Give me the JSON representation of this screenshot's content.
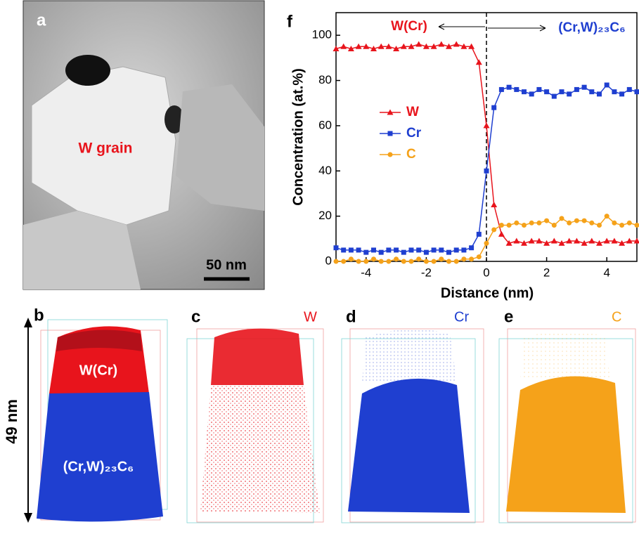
{
  "panels": {
    "a": {
      "label": "a",
      "annotation": "W grain",
      "scale_bar": "50 nm"
    },
    "b": {
      "label": "b",
      "upper_phase": "W(Cr)",
      "lower_phase": "(Cr,W)₂₃C₆",
      "height": "49 nm"
    },
    "c": {
      "label": "c",
      "element": "W"
    },
    "d": {
      "label": "d",
      "element": "Cr"
    },
    "e": {
      "label": "e",
      "element": "C"
    }
  },
  "chart_data": {
    "type": "line",
    "panel_label": "f",
    "x_label": "Distance (nm)",
    "y_label": "Concentration (at.%)",
    "annotations": [
      "W(Cr)",
      "(Cr,W)₂₃C₆"
    ],
    "x": [
      -5,
      -4.75,
      -4.5,
      -4.25,
      -4,
      -3.75,
      -3.5,
      -3.25,
      -3,
      -2.75,
      -2.5,
      -2.25,
      -2,
      -1.75,
      -1.5,
      -1.25,
      -1,
      -0.75,
      -0.5,
      -0.25,
      0,
      0.25,
      0.5,
      0.75,
      1,
      1.25,
      1.5,
      1.75,
      2,
      2.25,
      2.5,
      2.75,
      3,
      3.25,
      3.5,
      3.75,
      4,
      4.25,
      4.5,
      4.75,
      5
    ],
    "series": [
      {
        "name": "W",
        "color": "#e8141c",
        "marker": "triangle",
        "values": [
          94,
          95,
          94,
          95,
          95,
          94,
          95,
          95,
          94,
          95,
          95,
          96,
          95,
          95,
          96,
          95,
          96,
          95,
          95,
          88,
          60,
          25,
          12,
          8,
          9,
          8,
          9,
          9,
          8,
          9,
          8,
          9,
          9,
          8,
          9,
          8,
          9,
          9,
          8,
          9,
          9
        ]
      },
      {
        "name": "Cr",
        "color": "#1f3fd0",
        "marker": "square",
        "values": [
          6,
          5,
          5,
          5,
          4,
          5,
          4,
          5,
          5,
          4,
          5,
          5,
          4,
          5,
          5,
          4,
          5,
          5,
          6,
          12,
          40,
          68,
          76,
          77,
          76,
          75,
          74,
          76,
          75,
          73,
          75,
          74,
          76,
          77,
          75,
          74,
          78,
          75,
          74,
          76,
          75
        ]
      },
      {
        "name": "C",
        "color": "#f5a21a",
        "marker": "circle",
        "values": [
          0,
          0,
          1,
          0,
          0,
          1,
          0,
          0,
          1,
          0,
          0,
          1,
          0,
          0,
          1,
          0,
          0,
          1,
          1,
          2,
          8,
          14,
          16,
          16,
          17,
          16,
          17,
          17,
          18,
          16,
          19,
          17,
          18,
          18,
          17,
          16,
          20,
          17,
          16,
          17,
          16
        ]
      }
    ],
    "xlim": [
      -5,
      5
    ],
    "ylim": [
      0,
      110
    ],
    "xticks": [
      -4,
      -2,
      0,
      2,
      4
    ],
    "yticks": [
      0,
      20,
      40,
      60,
      80,
      100
    ],
    "reference_line_x": 0
  }
}
